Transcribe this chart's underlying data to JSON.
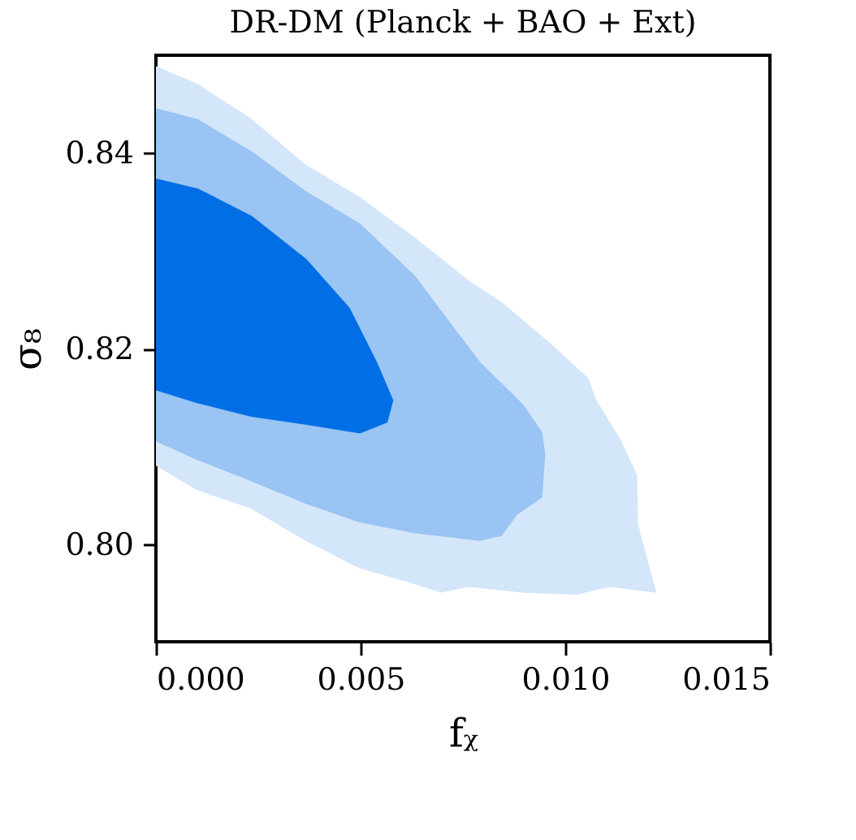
{
  "chart_data": {
    "type": "area",
    "title": "DR-DM (Planck + BAO + Ext)",
    "xlabel": "fᵪ",
    "ylabel": "σ₈",
    "xlim": [
      0,
      0.015
    ],
    "ylim": [
      0.79,
      0.85
    ],
    "xticks": [
      {
        "value": 0,
        "label": "0.000"
      },
      {
        "value": 0.005,
        "label": "0.005"
      },
      {
        "value": 0.01,
        "label": "0.010"
      },
      {
        "value": 0.015,
        "label": "0.015"
      }
    ],
    "yticks": [
      {
        "value": 0.8,
        "label": "0.80"
      },
      {
        "value": 0.82,
        "label": "0.82"
      },
      {
        "value": 0.84,
        "label": "0.84"
      }
    ],
    "grid": false,
    "series": [
      {
        "color": "#d4e6f9",
        "x": [
          0,
          0.00101,
          0.00233,
          0.00366,
          0.00498,
          0.00631,
          0.00763,
          0.00843,
          0.00962,
          0.01055,
          0.01074,
          0.01134,
          0.01174,
          0.01176,
          0.0122,
          0.01108,
          0.01028,
          0.00896,
          0.00763,
          0.00697,
          0.00631,
          0.00498,
          0.00366,
          0.00233,
          0.00101,
          0
        ],
        "values": [
          0.8488,
          0.847,
          0.8434,
          0.8387,
          0.8354,
          0.8313,
          0.8269,
          0.8247,
          0.8205,
          0.8169,
          0.8147,
          0.8106,
          0.807,
          0.802,
          0.7951,
          0.7957,
          0.7949,
          0.7951,
          0.7957,
          0.7951,
          0.796,
          0.7976,
          0.8004,
          0.8037,
          0.8056,
          0.8081
        ]
      },
      {
        "color": "#99c4f3",
        "x": [
          0,
          0.00101,
          0.00233,
          0.00366,
          0.00498,
          0.00631,
          0.0071,
          0.0079,
          0.00896,
          0.00942,
          0.00949,
          0.00942,
          0.00882,
          0.00843,
          0.0079,
          0.00631,
          0.00498,
          0.00366,
          0.00233,
          0.00101,
          0
        ],
        "values": [
          0.8445,
          0.8434,
          0.8401,
          0.836,
          0.8327,
          0.8274,
          0.823,
          0.8186,
          0.8142,
          0.8114,
          0.8092,
          0.8048,
          0.8031,
          0.8009,
          0.8004,
          0.8012,
          0.8023,
          0.8042,
          0.8065,
          0.8087,
          0.8106
        ]
      },
      {
        "color": "#006fe6",
        "x": [
          0,
          0.00101,
          0.00233,
          0.00366,
          0.00472,
          0.00538,
          0.00578,
          0.00564,
          0.00498,
          0.00366,
          0.00233,
          0.00101,
          0
        ],
        "values": [
          0.8373,
          0.8363,
          0.8335,
          0.8291,
          0.8241,
          0.8186,
          0.8147,
          0.8125,
          0.8114,
          0.8123,
          0.8131,
          0.8145,
          0.8158
        ]
      }
    ]
  }
}
